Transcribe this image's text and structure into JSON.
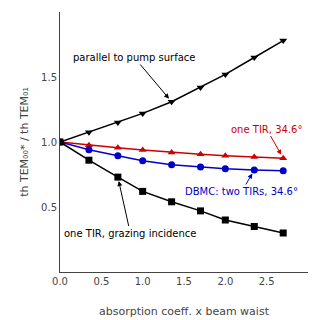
{
  "chart_data": {
    "type": "line",
    "xlabel": "absorption coeff. x beam waist",
    "ylabel": "th TEM₀₀* / th TEM₀₁",
    "x": [
      0.0,
      0.35,
      0.7,
      1.0,
      1.35,
      1.7,
      2.0,
      2.35,
      2.7
    ],
    "series": [
      {
        "name": "parallel to pump surface",
        "color": "#000000",
        "marker": "triangle-down",
        "values": [
          1.0,
          1.075,
          1.15,
          1.22,
          1.31,
          1.42,
          1.52,
          1.65,
          1.78
        ]
      },
      {
        "name": "one TIR, 34.6°",
        "color": "#cc0000",
        "marker": "triangle-up",
        "values": [
          1.0,
          0.975,
          0.955,
          0.938,
          0.92,
          0.905,
          0.895,
          0.885,
          0.875
        ]
      },
      {
        "name": "DBMC: two TIRs, 34.6°",
        "color": "#0000cc",
        "marker": "circle",
        "values": [
          1.0,
          0.94,
          0.895,
          0.855,
          0.825,
          0.808,
          0.795,
          0.785,
          0.778
        ]
      },
      {
        "name": "one TIR, grazing incidence",
        "color": "#000000",
        "marker": "square",
        "values": [
          1.0,
          0.86,
          0.73,
          0.62,
          0.54,
          0.47,
          0.4,
          0.35,
          0.3
        ]
      }
    ],
    "line_style": "solid",
    "xlim": [
      0,
      3.0
    ],
    "ylim": [
      0.0,
      2.0
    ],
    "xticks": [
      {
        "value": 0,
        "label": "0.0"
      },
      0.5,
      {
        "value": 1,
        "label": "1.0"
      },
      1.5,
      {
        "value": 2,
        "label": "2.0"
      },
      2.5
    ],
    "yticks": [
      0.5,
      {
        "value": 1,
        "label": "1.0"
      },
      1.5
    ],
    "grid": false
  }
}
